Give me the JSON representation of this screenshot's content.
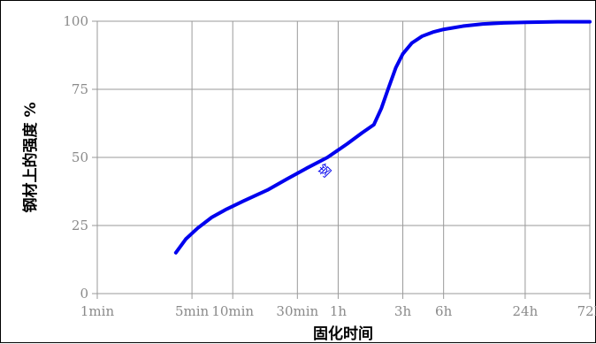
{
  "chart_data": {
    "type": "line",
    "xlabel": "固化时间",
    "ylabel": "钢材上的强度 %",
    "x_scale": "log",
    "x_unit": "minutes",
    "xlim": [
      1,
      4320
    ],
    "ylim": [
      0,
      100
    ],
    "grid": true,
    "x_ticks": [
      {
        "value": 1,
        "label": "1min"
      },
      {
        "value": 5,
        "label": "5min"
      },
      {
        "value": 10,
        "label": "10min"
      },
      {
        "value": 30,
        "label": "30min"
      },
      {
        "value": 60,
        "label": "1h"
      },
      {
        "value": 180,
        "label": "3h"
      },
      {
        "value": 360,
        "label": "6h"
      },
      {
        "value": 1440,
        "label": "24h"
      },
      {
        "value": 4320,
        "label": "72h"
      }
    ],
    "y_ticks": [
      0,
      25,
      50,
      75,
      100
    ],
    "series": [
      {
        "color": "#0000ee",
        "x": [
          3.8,
          4.5,
          5.5,
          7,
          9,
          12,
          18,
          25,
          35,
          50,
          70,
          90,
          110,
          125,
          140,
          160,
          180,
          210,
          250,
          300,
          360,
          500,
          700,
          1000,
          1440,
          2500,
          4320
        ],
        "y": [
          15,
          20,
          24,
          28,
          31,
          34,
          38,
          42,
          46,
          50,
          55,
          59,
          62,
          68,
          75,
          83,
          88,
          92,
          94.5,
          96,
          97,
          98.2,
          99,
          99.4,
          99.6,
          99.8,
          99.8
        ]
      }
    ],
    "annotations": [
      {
        "text": "钢",
        "x": 45,
        "y": 44,
        "angle": 45,
        "color": "#0000ee"
      }
    ]
  }
}
